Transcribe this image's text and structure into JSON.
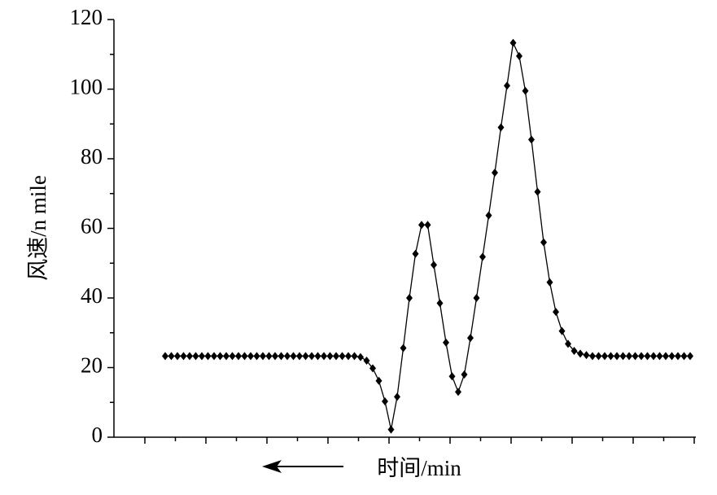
{
  "chart_data": {
    "type": "line",
    "x_label": "时间/min",
    "y_label": "风速/n mile",
    "categories": [
      null,
      null,
      null,
      null,
      null,
      null,
      null,
      null,
      null,
      null,
      null,
      null,
      null,
      null,
      null,
      null,
      null,
      null,
      null,
      null,
      null,
      null,
      null,
      null,
      null,
      null,
      null,
      null,
      null,
      null,
      null,
      null,
      null,
      null,
      null,
      null,
      null,
      null,
      null,
      null,
      null,
      null,
      null,
      null,
      null,
      null,
      null,
      null,
      null,
      null,
      null,
      null,
      null,
      null,
      null,
      null,
      null,
      null,
      null,
      null,
      null,
      null,
      null,
      null,
      null,
      null,
      null,
      null,
      null,
      null,
      null,
      null,
      null,
      null,
      null,
      null,
      null,
      null,
      null,
      null,
      null,
      null,
      null,
      null,
      null,
      null,
      null
    ],
    "series": [
      {
        "name": null,
        "color": "#000000",
        "values": [
          23.3,
          23.3,
          23.3,
          23.3,
          23.3,
          23.3,
          23.3,
          23.3,
          23.3,
          23.3,
          23.3,
          23.3,
          23.3,
          23.3,
          23.3,
          23.3,
          23.3,
          23.3,
          23.3,
          23.3,
          23.3,
          23.3,
          23.3,
          23.3,
          23.3,
          23.3,
          23.3,
          23.3,
          23.3,
          23.3,
          23.3,
          23.3,
          23.0,
          22.0,
          19.8,
          16.2,
          10.3,
          2.2,
          11.6,
          25.6,
          40.0,
          52.7,
          61.0,
          61.0,
          49.5,
          38.5,
          27.2,
          17.5,
          13.0,
          18.0,
          28.5,
          40.0,
          51.8,
          63.7,
          76.0,
          89.0,
          101.0,
          113.3,
          109.5,
          99.5,
          85.5,
          70.5,
          56.0,
          44.5,
          36.0,
          30.5,
          26.8,
          24.8,
          24.0,
          23.6,
          23.3,
          23.3,
          23.3,
          23.3,
          23.3,
          23.3,
          23.3,
          23.3,
          23.3,
          23.3,
          23.3,
          23.3,
          23.3,
          23.3,
          23.3,
          23.3,
          23.3
        ]
      }
    ],
    "ylim": [
      0,
      120
    ],
    "yticks": [
      0,
      20,
      40,
      60,
      80,
      100,
      120
    ],
    "grid": false,
    "marker": "diamond"
  }
}
